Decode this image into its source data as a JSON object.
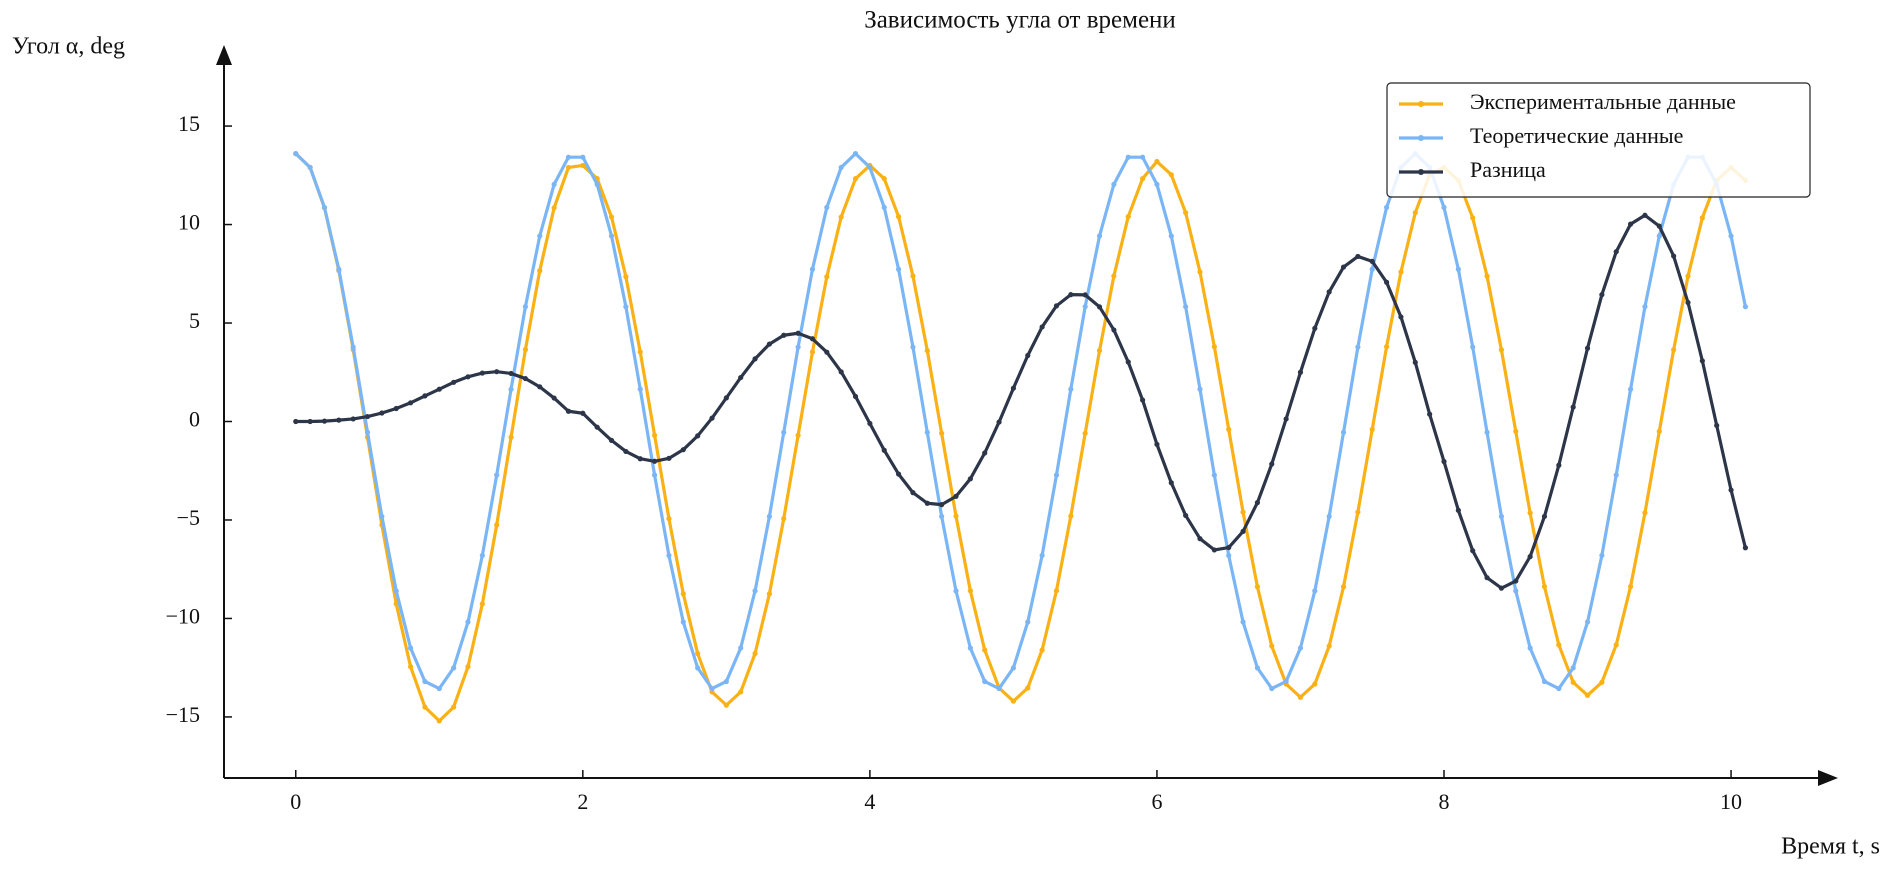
{
  "chart_data": {
    "type": "line",
    "title": "Зависимость угла от времени",
    "xlabel": "Время t, s",
    "ylabel": "Угол α, deg",
    "x": [
      0,
      0.1,
      0.2,
      0.3,
      0.4,
      0.5,
      0.6,
      0.7,
      0.8,
      0.9,
      1,
      1.1,
      1.2,
      1.3,
      1.4,
      1.5,
      1.6,
      1.7,
      1.8,
      1.9,
      2,
      2.1,
      2.2,
      2.3,
      2.4,
      2.5,
      2.6,
      2.7,
      2.8,
      2.9,
      3,
      3.1,
      3.2,
      3.3,
      3.4,
      3.5,
      3.6,
      3.7,
      3.8,
      3.9,
      4,
      4.1,
      4.2,
      4.3,
      4.4,
      4.5,
      4.6,
      4.7,
      4.8,
      4.9,
      5,
      5.1,
      5.2,
      5.3,
      5.4,
      5.5,
      5.6,
      5.7,
      5.8,
      5.9,
      6,
      6.1,
      6.2,
      6.3,
      6.4,
      6.5,
      6.6,
      6.7,
      6.8,
      6.9,
      7,
      7.1,
      7.2,
      7.3,
      7.4,
      7.5,
      7.6,
      7.7,
      7.8,
      7.9,
      8,
      8.1,
      8.2,
      8.3,
      8.4,
      8.5,
      8.6,
      8.7,
      8.8,
      8.9,
      9,
      9.1,
      9.2,
      9.3,
      9.4,
      9.5,
      9.6,
      9.7,
      9.8,
      9.9,
      10,
      10.1
    ],
    "series": [
      {
        "name": "Экспериментальные данные",
        "color": "#f9b115",
        "values": [
          13.6,
          12.9,
          10.85,
          7.66,
          3.65,
          -0.8,
          -5.25,
          -9.26,
          -12.45,
          -14.5,
          -15.2,
          -14.5,
          -12.45,
          -9.26,
          -5.25,
          -0.8,
          3.65,
          7.66,
          10.85,
          12.9,
          13.0,
          12.33,
          10.38,
          7.35,
          3.53,
          -0.7,
          -4.93,
          -8.75,
          -11.78,
          -13.73,
          -14.4,
          -13.73,
          -11.78,
          -8.75,
          -4.93,
          -0.7,
          3.53,
          7.35,
          10.38,
          12.33,
          13.0,
          12.33,
          10.4,
          7.39,
          3.6,
          -0.6,
          -4.8,
          -8.59,
          -11.6,
          -13.53,
          -14.2,
          -13.53,
          -11.6,
          -8.59,
          -4.8,
          -0.6,
          3.6,
          7.39,
          10.4,
          12.33,
          13.2,
          12.53,
          10.6,
          7.59,
          3.8,
          -0.4,
          -4.6,
          -8.39,
          -11.4,
          -13.33,
          -14.0,
          -13.33,
          -11.4,
          -8.39,
          -4.6,
          -0.4,
          3.8,
          7.59,
          10.6,
          12.53,
          12.9,
          12.24,
          10.34,
          7.38,
          3.64,
          -0.5,
          -4.64,
          -8.38,
          -11.34,
          -13.24,
          -13.9,
          -13.24,
          -11.34,
          -8.38,
          -4.64,
          -0.5,
          3.64,
          7.38,
          10.34,
          12.24,
          12.9,
          12.24
        ]
      },
      {
        "name": "Теоретические данные",
        "color": "#7ab6f5",
        "values": [
          13.6,
          12.9,
          10.87,
          7.73,
          3.78,
          -0.55,
          -4.82,
          -8.6,
          -11.5,
          -13.2,
          -13.56,
          -12.51,
          -10.18,
          -6.8,
          -2.72,
          1.64,
          5.83,
          9.42,
          12.04,
          13.42,
          13.42,
          12.04,
          9.42,
          5.83,
          1.64,
          -2.72,
          -6.8,
          -10.18,
          -12.51,
          -13.56,
          -13.2,
          -11.5,
          -8.6,
          -4.82,
          -0.55,
          3.78,
          7.73,
          10.87,
          12.9,
          13.6,
          12.9,
          10.87,
          7.73,
          3.78,
          -0.55,
          -4.82,
          -8.6,
          -11.5,
          -13.2,
          -13.56,
          -12.51,
          -10.18,
          -6.8,
          -2.72,
          1.64,
          5.83,
          9.42,
          12.04,
          13.42,
          13.42,
          12.04,
          9.42,
          5.83,
          1.64,
          -2.72,
          -6.8,
          -10.18,
          -12.51,
          -13.56,
          -13.2,
          -11.5,
          -8.6,
          -4.82,
          -0.55,
          3.78,
          7.73,
          10.87,
          12.9,
          13.6,
          12.9,
          10.87,
          7.73,
          3.78,
          -0.55,
          -4.82,
          -8.6,
          -11.5,
          -13.2,
          -13.56,
          -12.51,
          -10.18,
          -6.8,
          -2.72,
          1.64,
          5.83,
          9.42,
          12.04,
          13.42,
          13.42,
          12.04,
          9.42,
          5.83
        ]
      },
      {
        "name": "Разница",
        "color": "#2c3648",
        "values": [
          0,
          0,
          0.02,
          0.07,
          0.13,
          0.25,
          0.43,
          0.66,
          0.95,
          1.3,
          1.64,
          1.99,
          2.27,
          2.46,
          2.53,
          2.44,
          2.18,
          1.76,
          1.19,
          0.52,
          0.42,
          -0.29,
          -0.96,
          -1.52,
          -1.89,
          -2.02,
          -1.87,
          -1.43,
          -0.73,
          0.17,
          1.2,
          2.23,
          3.18,
          3.93,
          4.38,
          4.48,
          4.2,
          3.52,
          2.52,
          1.27,
          -0.1,
          -1.46,
          -2.67,
          -3.61,
          -4.15,
          -4.22,
          -3.8,
          -2.91,
          -1.6,
          -0.03,
          1.69,
          3.35,
          4.8,
          5.87,
          6.44,
          6.43,
          5.82,
          4.65,
          3.02,
          1.09,
          -1.16,
          -3.11,
          -4.77,
          -5.95,
          -6.52,
          -6.4,
          -5.58,
          -4.12,
          -2.16,
          0.13,
          2.5,
          4.73,
          6.58,
          7.84,
          8.38,
          8.13,
          7.07,
          5.31,
          3.0,
          0.37,
          -2.03,
          -4.51,
          -6.56,
          -7.93,
          -8.46,
          -8.1,
          -6.86,
          -4.82,
          -2.22,
          0.73,
          3.72,
          6.44,
          8.62,
          10.02,
          10.47,
          9.92,
          8.4,
          6.04,
          3.08,
          -0.2,
          -3.48,
          -6.41
        ]
      }
    ],
    "xlim": [
      -0.5,
      10.55
    ],
    "ylim": [
      -18.1,
      18.1
    ],
    "xticks": [
      0,
      2,
      4,
      6,
      8,
      10
    ],
    "yticks": [
      {
        "value": -15,
        "label": "−15"
      },
      {
        "value": -10,
        "label": "−10"
      },
      {
        "value": -5,
        "label": "−5"
      },
      0,
      5,
      10,
      15
    ],
    "legend": "upper right"
  }
}
